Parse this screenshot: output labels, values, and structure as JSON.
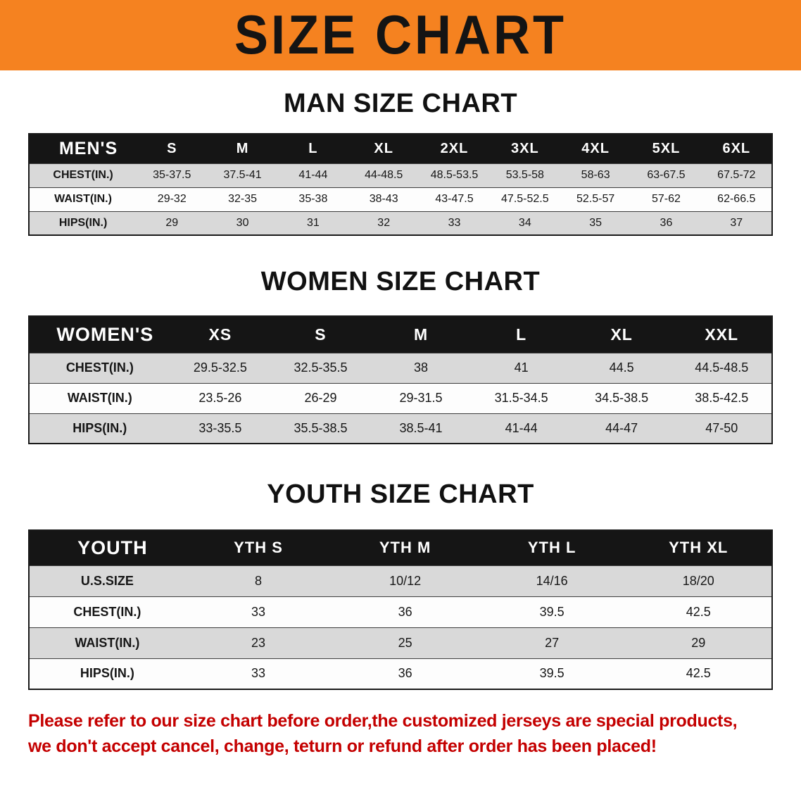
{
  "banner": {
    "title": "SIZE CHART"
  },
  "colors": {
    "banner_orange": "#f58220",
    "header_black": "#151515",
    "row_gray": "#d9d9d9",
    "note_red": "#c40000"
  },
  "sections": [
    {
      "id": "men",
      "heading": "MAN SIZE CHART",
      "table": {
        "header_label": "MEN'S",
        "columns": [
          "S",
          "M",
          "L",
          "XL",
          "2XL",
          "3XL",
          "4XL",
          "5XL",
          "6XL"
        ],
        "rows": [
          {
            "label": "CHEST(IN.)",
            "values": [
              "35-37.5",
              "37.5-41",
              "41-44",
              "44-48.5",
              "48.5-53.5",
              "53.5-58",
              "58-63",
              "63-67.5",
              "67.5-72"
            ]
          },
          {
            "label": "WAIST(IN.)",
            "values": [
              "29-32",
              "32-35",
              "35-38",
              "38-43",
              "43-47.5",
              "47.5-52.5",
              "52.5-57",
              "57-62",
              "62-66.5"
            ]
          },
          {
            "label": "HIPS(IN.)",
            "values": [
              "29",
              "30",
              "31",
              "32",
              "33",
              "34",
              "35",
              "36",
              "37"
            ]
          }
        ]
      }
    },
    {
      "id": "women",
      "heading": "WOMEN SIZE CHART",
      "table": {
        "header_label": "WOMEN'S",
        "columns": [
          "XS",
          "S",
          "M",
          "L",
          "XL",
          "XXL"
        ],
        "rows": [
          {
            "label": "CHEST(IN.)",
            "values": [
              "29.5-32.5",
              "32.5-35.5",
              "38",
              "41",
              "44.5",
              "44.5-48.5"
            ]
          },
          {
            "label": "WAIST(IN.)",
            "values": [
              "23.5-26",
              "26-29",
              "29-31.5",
              "31.5-34.5",
              "34.5-38.5",
              "38.5-42.5"
            ]
          },
          {
            "label": "HIPS(IN.)",
            "values": [
              "33-35.5",
              "35.5-38.5",
              "38.5-41",
              "41-44",
              "44-47",
              "47-50"
            ]
          }
        ]
      }
    },
    {
      "id": "youth",
      "heading": "YOUTH SIZE CHART",
      "table": {
        "header_label": "YOUTH",
        "columns": [
          "YTH S",
          "YTH M",
          "YTH L",
          "YTH XL"
        ],
        "rows": [
          {
            "label": "U.S.SIZE",
            "values": [
              "8",
              "10/12",
              "14/16",
              "18/20"
            ]
          },
          {
            "label": "CHEST(IN.)",
            "values": [
              "33",
              "36",
              "39.5",
              "42.5"
            ]
          },
          {
            "label": "WAIST(IN.)",
            "values": [
              "23",
              "25",
              "27",
              "29"
            ]
          },
          {
            "label": "HIPS(IN.)",
            "values": [
              "33",
              "36",
              "39.5",
              "42.5"
            ]
          }
        ]
      }
    }
  ],
  "footer": {
    "lines": [
      "Please refer to our size chart before order,the customized jerseys are special products,",
      "we don't accept cancel, change, teturn or refund after order has been placed!"
    ]
  }
}
